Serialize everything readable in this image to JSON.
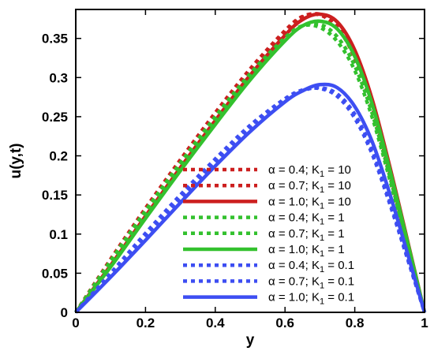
{
  "chart_data": {
    "type": "line",
    "xlabel": "y",
    "ylabel": "u(y,t)",
    "xlim": [
      0,
      1
    ],
    "ylim": [
      0,
      0.387
    ],
    "x_ticks": [
      "0",
      "0.2",
      "0.4",
      "0.6",
      "0.8",
      "1"
    ],
    "y_ticks": [
      "0",
      "0.05",
      "0.1",
      "0.15",
      "0.2",
      "0.25",
      "0.3",
      "0.35"
    ],
    "grid": false,
    "legend_position": "bottom-right",
    "colors": {
      "red": "#cc1f1f",
      "green": "#33c12e",
      "blue": "#3d4ef2"
    },
    "series": [
      {
        "name": "α = 0.4; K₁ = 10",
        "alpha": "0.4",
        "k": "10",
        "color": "#cc1f1f",
        "style": "dotted",
        "x": [
          0,
          0.1,
          0.2,
          0.3,
          0.4,
          0.5,
          0.6,
          0.65,
          0.7,
          0.75,
          0.8,
          0.85,
          0.9,
          0.95,
          1.0
        ],
        "y": [
          0,
          0.068,
          0.133,
          0.195,
          0.255,
          0.311,
          0.36,
          0.378,
          0.38,
          0.364,
          0.325,
          0.262,
          0.178,
          0.088,
          0
        ]
      },
      {
        "name": "α = 0.7; K₁ = 10",
        "alpha": "0.7",
        "k": "10",
        "color": "#cc1f1f",
        "style": "dotted",
        "x": [
          0,
          0.1,
          0.2,
          0.3,
          0.4,
          0.5,
          0.6,
          0.65,
          0.7,
          0.75,
          0.8,
          0.85,
          0.9,
          0.95,
          1.0
        ],
        "y": [
          0,
          0.064,
          0.128,
          0.19,
          0.25,
          0.307,
          0.357,
          0.377,
          0.381,
          0.367,
          0.329,
          0.266,
          0.182,
          0.091,
          0
        ]
      },
      {
        "name": "α = 1.0; K₁ = 10",
        "alpha": "1.0",
        "k": "10",
        "color": "#cc1f1f",
        "style": "solid",
        "x": [
          0,
          0.1,
          0.2,
          0.3,
          0.4,
          0.5,
          0.6,
          0.65,
          0.7,
          0.75,
          0.8,
          0.85,
          0.9,
          0.95,
          1.0
        ],
        "y": [
          0,
          0.06,
          0.123,
          0.185,
          0.245,
          0.303,
          0.354,
          0.374,
          0.381,
          0.371,
          0.335,
          0.272,
          0.187,
          0.094,
          0
        ]
      },
      {
        "name": "α = 0.4; K₁ = 1",
        "alpha": "0.4",
        "k": "1",
        "color": "#33c12e",
        "style": "dotted",
        "x": [
          0,
          0.1,
          0.2,
          0.3,
          0.4,
          0.5,
          0.6,
          0.65,
          0.7,
          0.75,
          0.8,
          0.85,
          0.9,
          0.95,
          1.0
        ],
        "y": [
          0,
          0.066,
          0.13,
          0.191,
          0.25,
          0.305,
          0.351,
          0.366,
          0.364,
          0.346,
          0.309,
          0.249,
          0.17,
          0.085,
          0
        ]
      },
      {
        "name": "α = 0.7; K₁ = 1",
        "alpha": "0.7",
        "k": "1",
        "color": "#33c12e",
        "style": "dotted",
        "x": [
          0,
          0.1,
          0.2,
          0.3,
          0.4,
          0.5,
          0.6,
          0.65,
          0.7,
          0.75,
          0.8,
          0.85,
          0.9,
          0.95,
          1.0
        ],
        "y": [
          0,
          0.062,
          0.125,
          0.186,
          0.245,
          0.301,
          0.349,
          0.366,
          0.368,
          0.352,
          0.315,
          0.254,
          0.174,
          0.087,
          0
        ]
      },
      {
        "name": "α = 1.0; K₁ = 1",
        "alpha": "1.0",
        "k": "1",
        "color": "#33c12e",
        "style": "solid",
        "x": [
          0,
          0.1,
          0.2,
          0.3,
          0.4,
          0.5,
          0.6,
          0.65,
          0.7,
          0.75,
          0.8,
          0.85,
          0.9,
          0.95,
          1.0
        ],
        "y": [
          0,
          0.058,
          0.12,
          0.181,
          0.24,
          0.297,
          0.347,
          0.366,
          0.372,
          0.362,
          0.327,
          0.266,
          0.183,
          0.092,
          0
        ]
      },
      {
        "name": "α = 0.4; K₁ = 0.1",
        "alpha": "0.4",
        "k": "0.1",
        "color": "#3d4ef2",
        "style": "dotted",
        "x": [
          0,
          0.1,
          0.2,
          0.3,
          0.4,
          0.5,
          0.6,
          0.65,
          0.7,
          0.75,
          0.8,
          0.85,
          0.9,
          0.95,
          1.0
        ],
        "y": [
          0,
          0.05,
          0.101,
          0.15,
          0.196,
          0.239,
          0.273,
          0.284,
          0.286,
          0.276,
          0.248,
          0.202,
          0.139,
          0.07,
          0
        ]
      },
      {
        "name": "α = 0.7; K₁ = 0.1",
        "alpha": "0.7",
        "k": "0.1",
        "color": "#3d4ef2",
        "style": "dotted",
        "x": [
          0,
          0.1,
          0.2,
          0.3,
          0.4,
          0.5,
          0.6,
          0.65,
          0.7,
          0.75,
          0.8,
          0.85,
          0.9,
          0.95,
          1.0
        ],
        "y": [
          0,
          0.047,
          0.096,
          0.145,
          0.192,
          0.235,
          0.271,
          0.283,
          0.287,
          0.279,
          0.253,
          0.207,
          0.143,
          0.072,
          0
        ]
      },
      {
        "name": "α = 1.0; K₁ = 0.1",
        "alpha": "1.0",
        "k": "0.1",
        "color": "#3d4ef2",
        "style": "solid",
        "x": [
          0,
          0.1,
          0.2,
          0.3,
          0.4,
          0.5,
          0.6,
          0.65,
          0.7,
          0.75,
          0.8,
          0.85,
          0.9,
          0.95,
          1.0
        ],
        "y": [
          0,
          0.045,
          0.092,
          0.14,
          0.187,
          0.231,
          0.269,
          0.283,
          0.291,
          0.287,
          0.263,
          0.218,
          0.152,
          0.077,
          0
        ]
      }
    ]
  }
}
